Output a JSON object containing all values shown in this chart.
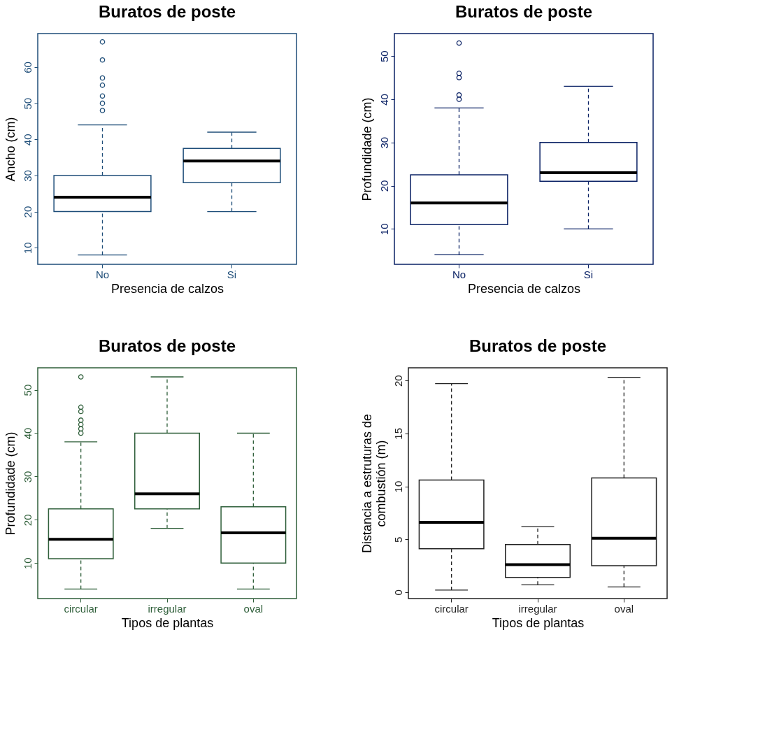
{
  "chart_data": [
    {
      "type": "box",
      "title": "Buratos de poste",
      "xlabel": "Presencia de calzos",
      "ylabel": "Ancho (cm)",
      "categories": [
        "No",
        "Si"
      ],
      "color": "#1f4e79",
      "grid": false,
      "ylim": [
        5.4,
        69.3
      ],
      "yticks": [
        10,
        20,
        30,
        40,
        50,
        60
      ],
      "boxes": [
        {
          "low": 8,
          "q1": 20,
          "median": 24,
          "q3": 30,
          "high": 44,
          "outliers": [
            48,
            50,
            52,
            55,
            57,
            62,
            67
          ]
        },
        {
          "low": 20,
          "q1": 28,
          "median": 34,
          "q3": 37.5,
          "high": 42
        }
      ]
    },
    {
      "type": "box",
      "title": "Buratos de poste",
      "xlabel": "Presencia de calzos",
      "ylabel": "Profundidade (cm)",
      "categories": [
        "No",
        "Si"
      ],
      "color": "#0b2265",
      "grid": false,
      "ylim": [
        1.8,
        55.2
      ],
      "yticks": [
        10,
        20,
        30,
        40,
        50
      ],
      "boxes": [
        {
          "low": 4,
          "q1": 11,
          "median": 16,
          "q3": 22.5,
          "high": 38,
          "outliers": [
            40,
            41,
            45,
            46,
            53
          ]
        },
        {
          "low": 10,
          "q1": 21,
          "median": 23,
          "q3": 30,
          "high": 43
        }
      ]
    },
    {
      "type": "box",
      "title": "Buratos de poste",
      "xlabel": "Tipos de plantas",
      "ylabel": "Profundidade (cm)",
      "categories": [
        "circular",
        "irregular",
        "oval"
      ],
      "color": "#2f5f3a",
      "grid": false,
      "ylim": [
        1.8,
        55.1
      ],
      "yticks": [
        10,
        20,
        30,
        40,
        50
      ],
      "boxes": [
        {
          "low": 4,
          "q1": 11,
          "median": 15.5,
          "q3": 22.5,
          "high": 38,
          "outliers": [
            40,
            41,
            42,
            43,
            45,
            46,
            53
          ]
        },
        {
          "low": 18,
          "q1": 22.5,
          "median": 26,
          "q3": 40,
          "high": 53
        },
        {
          "low": 4,
          "q1": 10,
          "median": 17,
          "q3": 23,
          "high": 40
        }
      ]
    },
    {
      "type": "box",
      "title": "Buratos de poste",
      "xlabel": "Tipos de plantas",
      "ylabel": "Distancia a estruturas de\ncombustión (m)",
      "categories": [
        "circular",
        "irregular",
        "oval"
      ],
      "color": "#222222",
      "grid": false,
      "ylim": [
        -0.6,
        21.2
      ],
      "yticks": [
        0,
        5,
        10,
        15,
        20
      ],
      "boxes": [
        {
          "low": 0.2,
          "q1": 4.1,
          "median": 6.6,
          "q3": 10.6,
          "high": 19.7
        },
        {
          "low": 0.7,
          "q1": 1.4,
          "median": 2.6,
          "q3": 4.5,
          "high": 6.2
        },
        {
          "low": 0.5,
          "q1": 2.5,
          "median": 5.1,
          "q3": 10.8,
          "high": 20.3
        }
      ]
    }
  ]
}
